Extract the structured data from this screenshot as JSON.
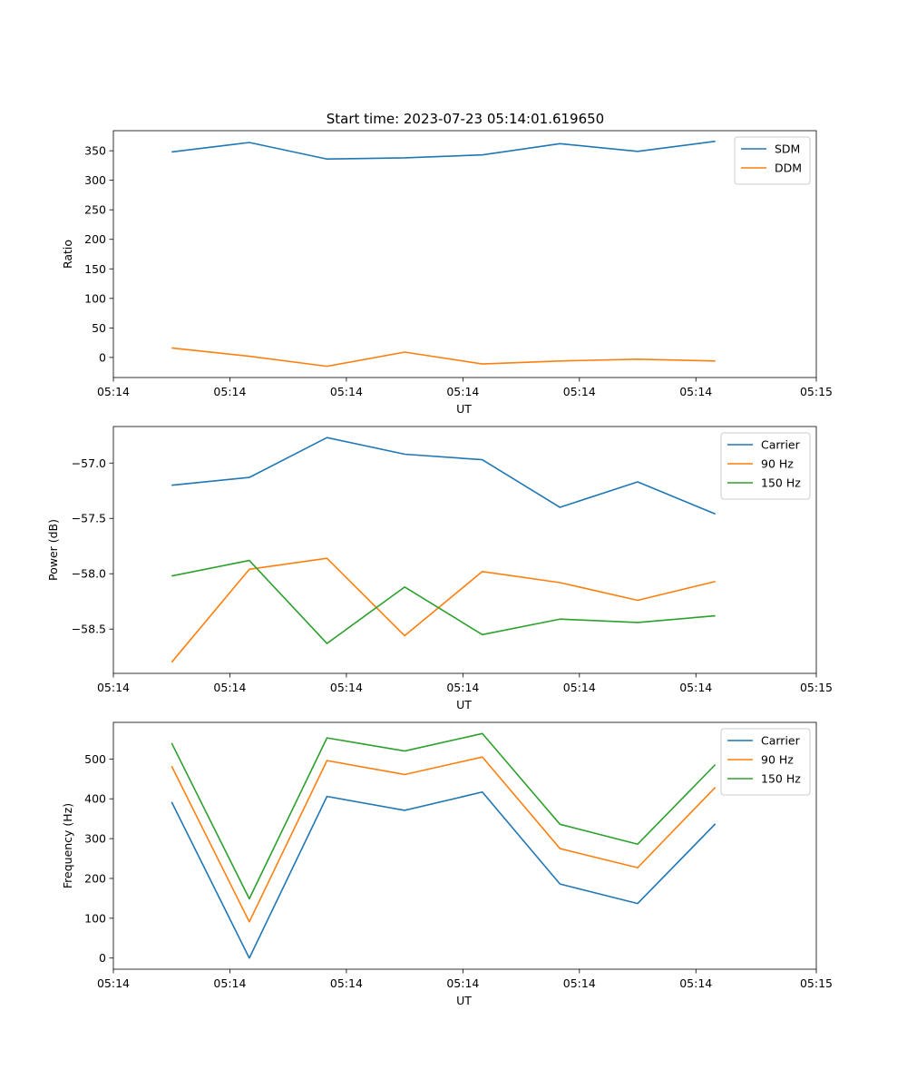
{
  "figure": {
    "title": "Start time: 2023-07-23 05:14:01.619650"
  },
  "chart_data": [
    {
      "type": "line",
      "title": "Start time: 2023-07-23 05:14:01.619650",
      "xlabel": "UT",
      "ylabel": "Ratio",
      "x_index": [
        0,
        1,
        2,
        3,
        4,
        5,
        6,
        7
      ],
      "xlim": [
        -0.75,
        8.3
      ],
      "xticks": [
        -0.75,
        0.75,
        2.25,
        3.75,
        5.25,
        6.75,
        8.3
      ],
      "xtick_labels": [
        "05:14",
        "05:14",
        "05:14",
        "05:14",
        "05:14",
        "05:14",
        "05:15"
      ],
      "ylim": [
        -34,
        384
      ],
      "yticks": [
        0,
        50,
        100,
        150,
        200,
        250,
        300,
        350
      ],
      "ytick_labels": [
        "0",
        "50",
        "100",
        "150",
        "200",
        "250",
        "300",
        "350"
      ],
      "legend": "top-right",
      "series": [
        {
          "name": "SDM",
          "color": "#1f77b4",
          "values": [
            348,
            364,
            336,
            338,
            343,
            362,
            349,
            366
          ]
        },
        {
          "name": "DDM",
          "color": "#ff7f0e",
          "values": [
            16,
            2,
            -15,
            9,
            -11,
            -6,
            -3,
            -6
          ]
        }
      ]
    },
    {
      "type": "line",
      "title": "",
      "xlabel": "UT",
      "ylabel": "Power (dB)",
      "x_index": [
        0,
        1,
        2,
        3,
        4,
        5,
        6,
        7
      ],
      "xlim": [
        -0.75,
        8.3
      ],
      "xticks": [
        -0.75,
        0.75,
        2.25,
        3.75,
        5.25,
        6.75,
        8.3
      ],
      "xtick_labels": [
        "05:14",
        "05:14",
        "05:14",
        "05:14",
        "05:14",
        "05:14",
        "05:15"
      ],
      "ylim": [
        -58.9,
        -56.67
      ],
      "yticks": [
        -58.5,
        -58.0,
        -57.5,
        -57.0
      ],
      "ytick_labels": [
        "−58.5",
        "−58.0",
        "−57.5",
        "−57.0"
      ],
      "legend": "top-right",
      "series": [
        {
          "name": "Carrier",
          "color": "#1f77b4",
          "values": [
            -57.2,
            -57.13,
            -56.77,
            -56.92,
            -56.97,
            -57.4,
            -57.17,
            -57.46
          ]
        },
        {
          "name": "90 Hz",
          "color": "#ff7f0e",
          "values": [
            -58.8,
            -57.96,
            -57.86,
            -58.56,
            -57.98,
            -58.08,
            -58.24,
            -58.07
          ]
        },
        {
          "name": "150 Hz",
          "color": "#2ca02c",
          "values": [
            -58.02,
            -57.88,
            -58.63,
            -58.12,
            -58.55,
            -58.41,
            -58.44,
            -58.38
          ]
        }
      ]
    },
    {
      "type": "line",
      "title": "",
      "xlabel": "UT",
      "ylabel": "Frequency (Hz)",
      "x_index": [
        0,
        1,
        2,
        3,
        4,
        5,
        6,
        7
      ],
      "xlim": [
        -0.75,
        8.3
      ],
      "xticks": [
        -0.75,
        0.75,
        2.25,
        3.75,
        5.25,
        6.75,
        8.3
      ],
      "xtick_labels": [
        "05:14",
        "05:14",
        "05:14",
        "05:14",
        "05:14",
        "05:14",
        "05:15"
      ],
      "ylim": [
        -28,
        592
      ],
      "yticks": [
        0,
        100,
        200,
        300,
        400,
        500
      ],
      "ytick_labels": [
        "0",
        "100",
        "200",
        "300",
        "400",
        "500"
      ],
      "legend": "top-right",
      "series": [
        {
          "name": "Carrier",
          "color": "#1f77b4",
          "values": [
            392,
            0,
            406,
            371,
            417,
            186,
            137,
            337
          ]
        },
        {
          "name": "90 Hz",
          "color": "#ff7f0e",
          "values": [
            482,
            91,
            496,
            461,
            505,
            275,
            227,
            429
          ]
        },
        {
          "name": "150 Hz",
          "color": "#2ca02c",
          "values": [
            540,
            149,
            553,
            520,
            564,
            336,
            286,
            486
          ]
        }
      ]
    }
  ]
}
